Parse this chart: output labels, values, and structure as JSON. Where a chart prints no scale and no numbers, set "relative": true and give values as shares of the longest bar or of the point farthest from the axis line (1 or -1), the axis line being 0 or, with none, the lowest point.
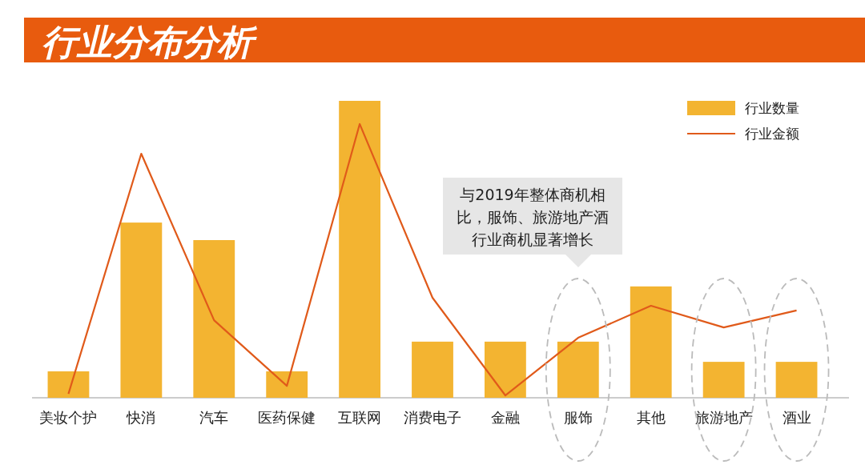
{
  "chart_data": {
    "type": "bar",
    "title": "行业分布分析",
    "relative": true,
    "legend": "top right",
    "categories": [
      "美妆个护",
      "快消",
      "汽车",
      "医药保健",
      "互联网",
      "消费电子",
      "金融",
      "服饰",
      "其他",
      "旅游地产",
      "酒业"
    ],
    "series": [
      {
        "name": "行业数量",
        "color": "#f3b431",
        "values": [
          0.089,
          0.59,
          0.531,
          0.089,
          1,
          0.189,
          0.189,
          0.189,
          0.375,
          0.121,
          0.121
        ]
      },
      {
        "name": "行业金额",
        "type": "line",
        "color": "#e05a1a",
        "values": [
          0.013,
          0.822,
          0.261,
          0.04,
          0.922,
          0.337,
          0.008,
          0.202,
          0.31,
          0.237,
          0.294
        ]
      }
    ],
    "annotations": [
      "与2019年整体商机相比，服饰、旅游地产酒行业商机显著增长"
    ]
  }
}
